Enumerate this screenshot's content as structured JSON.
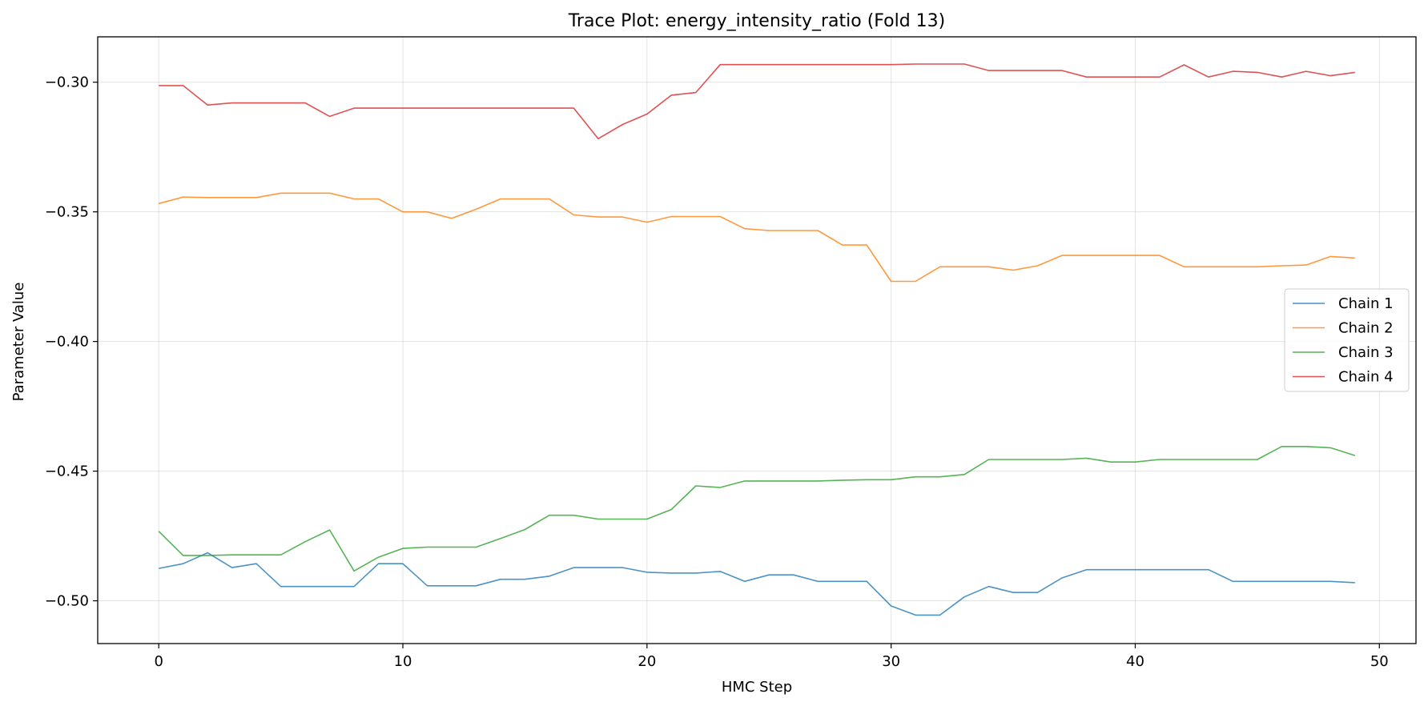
{
  "chart_data": {
    "type": "line",
    "title": "Trace Plot: energy_intensity_ratio (Fold 13)",
    "xlabel": "HMC Step",
    "ylabel": "Parameter Value",
    "xlim": [
      -2.5,
      51.5
    ],
    "ylim": [
      -0.5165,
      -0.2825
    ],
    "xticks": [
      0,
      10,
      20,
      30,
      40,
      50
    ],
    "yticks": [
      -0.3,
      -0.35,
      -0.4,
      -0.45,
      -0.5
    ],
    "xtick_labels": [
      "0",
      "10",
      "20",
      "30",
      "40",
      "50"
    ],
    "ytick_labels": [
      "−0.30",
      "−0.35",
      "−0.40",
      "−0.45",
      "−0.50"
    ],
    "grid": true,
    "legend_position": "center-right",
    "x": [
      0,
      1,
      2,
      3,
      4,
      5,
      6,
      7,
      8,
      9,
      10,
      11,
      12,
      13,
      14,
      15,
      16,
      17,
      18,
      19,
      20,
      21,
      22,
      23,
      24,
      25,
      26,
      27,
      28,
      29,
      30,
      31,
      32,
      33,
      34,
      35,
      36,
      37,
      38,
      39,
      40,
      41,
      42,
      43,
      44,
      45,
      46,
      47,
      48,
      49
    ],
    "series": [
      {
        "name": "Chain 1",
        "color": "#1f77b4",
        "values": [
          -0.4875,
          -0.4857,
          -0.4815,
          -0.4872,
          -0.4857,
          -0.4945,
          -0.4945,
          -0.4945,
          -0.4945,
          -0.4857,
          -0.4857,
          -0.4942,
          -0.4942,
          -0.4942,
          -0.4917,
          -0.4917,
          -0.4905,
          -0.4872,
          -0.4872,
          -0.4872,
          -0.489,
          -0.4893,
          -0.4893,
          -0.4887,
          -0.4925,
          -0.49,
          -0.49,
          -0.4925,
          -0.4925,
          -0.4925,
          -0.502,
          -0.5055,
          -0.5055,
          -0.4985,
          -0.4945,
          -0.4968,
          -0.4968,
          -0.4912,
          -0.488,
          -0.488,
          -0.488,
          -0.488,
          -0.488,
          -0.488,
          -0.4925,
          -0.4925,
          -0.4925,
          -0.4925,
          -0.4925,
          -0.493
        ]
      },
      {
        "name": "Chain 2",
        "color": "#ff7f0e",
        "values": [
          -0.3468,
          -0.3443,
          -0.3445,
          -0.3445,
          -0.3445,
          -0.3428,
          -0.3428,
          -0.3428,
          -0.345,
          -0.345,
          -0.35,
          -0.35,
          -0.3525,
          -0.349,
          -0.345,
          -0.345,
          -0.345,
          -0.3512,
          -0.352,
          -0.352,
          -0.354,
          -0.3518,
          -0.3518,
          -0.3518,
          -0.3565,
          -0.3572,
          -0.3572,
          -0.3572,
          -0.3628,
          -0.3628,
          -0.3768,
          -0.3768,
          -0.3712,
          -0.3712,
          -0.3712,
          -0.3725,
          -0.3708,
          -0.3668,
          -0.3668,
          -0.3668,
          -0.3668,
          -0.3668,
          -0.3712,
          -0.3712,
          -0.3712,
          -0.3712,
          -0.3708,
          -0.3705,
          -0.3672,
          -0.3678
        ]
      },
      {
        "name": "Chain 3",
        "color": "#2ca02c",
        "values": [
          -0.4732,
          -0.4825,
          -0.4825,
          -0.4823,
          -0.4823,
          -0.4823,
          -0.4772,
          -0.4727,
          -0.4885,
          -0.4832,
          -0.4798,
          -0.4793,
          -0.4793,
          -0.4793,
          -0.476,
          -0.4725,
          -0.467,
          -0.467,
          -0.4685,
          -0.4685,
          -0.4685,
          -0.4648,
          -0.4557,
          -0.4563,
          -0.4538,
          -0.4538,
          -0.4538,
          -0.4538,
          -0.4535,
          -0.4533,
          -0.4533,
          -0.4522,
          -0.4522,
          -0.4513,
          -0.4455,
          -0.4455,
          -0.4455,
          -0.4455,
          -0.445,
          -0.4465,
          -0.4465,
          -0.4455,
          -0.4455,
          -0.4455,
          -0.4455,
          -0.4455,
          -0.4405,
          -0.4405,
          -0.441,
          -0.444
        ]
      },
      {
        "name": "Chain 4",
        "color": "#d62728",
        "values": [
          -0.3013,
          -0.3013,
          -0.3088,
          -0.308,
          -0.308,
          -0.308,
          -0.308,
          -0.3132,
          -0.31,
          -0.31,
          -0.31,
          -0.31,
          -0.31,
          -0.31,
          -0.31,
          -0.31,
          -0.31,
          -0.31,
          -0.3218,
          -0.3163,
          -0.3123,
          -0.305,
          -0.304,
          -0.2932,
          -0.2932,
          -0.2932,
          -0.2932,
          -0.2932,
          -0.2932,
          -0.2932,
          -0.2932,
          -0.293,
          -0.293,
          -0.293,
          -0.2955,
          -0.2955,
          -0.2955,
          -0.2955,
          -0.298,
          -0.298,
          -0.298,
          -0.298,
          -0.2933,
          -0.298,
          -0.2958,
          -0.2962,
          -0.298,
          -0.2958,
          -0.2975,
          -0.2962
        ]
      }
    ]
  }
}
